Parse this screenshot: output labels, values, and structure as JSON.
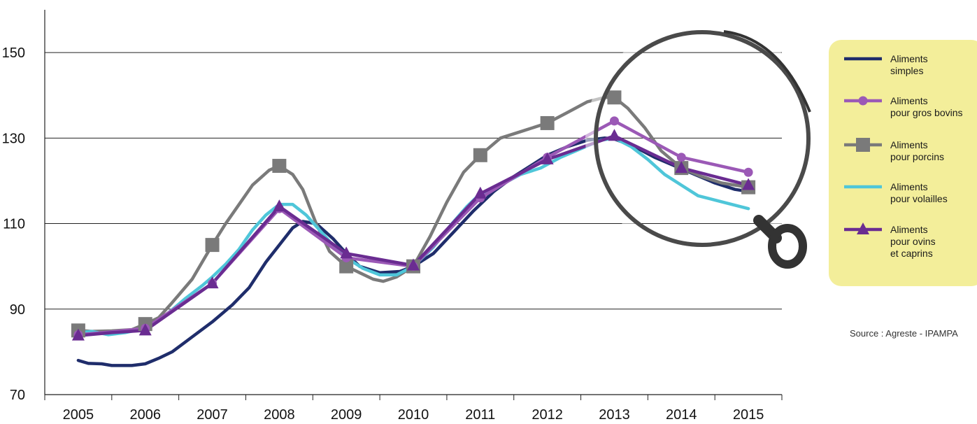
{
  "chart_data": {
    "type": "line",
    "x_ticks": [
      "2005",
      "2006",
      "2007",
      "2008",
      "2009",
      "2010",
      "2011",
      "2012",
      "2013",
      "2014",
      "2015"
    ],
    "y_ticks": [
      "70",
      "90",
      "110",
      "130",
      "150"
    ],
    "ylim": [
      70,
      160
    ],
    "xlim": [
      2004.5,
      2015.5
    ],
    "grid": "horizontal",
    "legend_position": "right",
    "source": "Source : Agreste - IPAMPA",
    "series": [
      {
        "name": "Aliments simples",
        "legend_lines": [
          "Aliments",
          "simples"
        ],
        "color": "#1f2d6b",
        "marker": "none",
        "points": [
          [
            2005.0,
            78.0
          ],
          [
            2005.15,
            77.3
          ],
          [
            2005.35,
            77.2
          ],
          [
            2005.5,
            76.8
          ],
          [
            2005.8,
            76.8
          ],
          [
            2006.0,
            77.2
          ],
          [
            2006.2,
            78.5
          ],
          [
            2006.4,
            80.0
          ],
          [
            2006.7,
            83.5
          ],
          [
            2007.0,
            87.0
          ],
          [
            2007.3,
            91.0
          ],
          [
            2007.55,
            95.0
          ],
          [
            2007.8,
            101.0
          ],
          [
            2008.0,
            105.0
          ],
          [
            2008.2,
            109.0
          ],
          [
            2008.35,
            110.5
          ],
          [
            2008.55,
            110.0
          ],
          [
            2008.8,
            106.5
          ],
          [
            2009.0,
            103.0
          ],
          [
            2009.2,
            100.0
          ],
          [
            2009.5,
            98.5
          ],
          [
            2009.8,
            98.8
          ],
          [
            2010.0,
            100.0
          ],
          [
            2010.3,
            103.0
          ],
          [
            2010.6,
            108.0
          ],
          [
            2010.9,
            113.0
          ],
          [
            2011.2,
            117.5
          ],
          [
            2011.5,
            121.0
          ],
          [
            2011.8,
            124.0
          ],
          [
            2012.0,
            126.0
          ],
          [
            2012.3,
            128.0
          ],
          [
            2012.6,
            129.5
          ],
          [
            2012.85,
            130.0
          ],
          [
            2013.0,
            129.8
          ],
          [
            2013.3,
            128.0
          ],
          [
            2013.6,
            125.5
          ],
          [
            2013.9,
            123.5
          ],
          [
            2014.2,
            121.5
          ],
          [
            2014.5,
            119.5
          ],
          [
            2014.8,
            118.0
          ],
          [
            2015.0,
            117.5
          ]
        ]
      },
      {
        "name": "Aliments pour gros bovins",
        "legend_lines": [
          "Aliments",
          "pour gros bovins"
        ],
        "color": "#9b59b6",
        "marker": "circle",
        "points": [
          [
            2005.0,
            84.0
          ],
          [
            2005.5,
            84.7
          ],
          [
            2006.0,
            85.5
          ],
          [
            2007.0,
            96.0
          ],
          [
            2008.0,
            113.5
          ],
          [
            2009.0,
            102.0
          ],
          [
            2010.0,
            100.0
          ],
          [
            2011.0,
            116.0
          ],
          [
            2012.0,
            125.5
          ],
          [
            2013.0,
            134.0
          ],
          [
            2014.0,
            125.5
          ],
          [
            2015.0,
            122.0
          ]
        ]
      },
      {
        "name": "Aliments pour porcins",
        "legend_lines": [
          "Aliments",
          "pour porcins"
        ],
        "color": "#7a7a7a",
        "marker": "square",
        "points": [
          [
            2005.0,
            85.0
          ],
          [
            2005.2,
            84.8
          ],
          [
            2005.5,
            84.9
          ],
          [
            2005.8,
            85.2
          ],
          [
            2006.0,
            86.5
          ],
          [
            2006.2,
            88.0
          ],
          [
            2006.4,
            91.5
          ],
          [
            2006.7,
            97.0
          ],
          [
            2007.0,
            105.0
          ],
          [
            2007.2,
            110.0
          ],
          [
            2007.4,
            114.5
          ],
          [
            2007.6,
            119.0
          ],
          [
            2007.85,
            122.5
          ],
          [
            2008.0,
            123.5
          ],
          [
            2008.2,
            121.5
          ],
          [
            2008.35,
            118.0
          ],
          [
            2008.55,
            110.0
          ],
          [
            2008.75,
            103.5
          ],
          [
            2009.0,
            100.0
          ],
          [
            2009.2,
            98.5
          ],
          [
            2009.4,
            97.0
          ],
          [
            2009.55,
            96.5
          ],
          [
            2009.75,
            97.5
          ],
          [
            2010.0,
            100.0
          ],
          [
            2010.25,
            107.0
          ],
          [
            2010.5,
            115.0
          ],
          [
            2010.75,
            122.0
          ],
          [
            2011.0,
            126.0
          ],
          [
            2011.3,
            130.0
          ],
          [
            2011.6,
            131.5
          ],
          [
            2012.0,
            133.5
          ],
          [
            2012.3,
            136.0
          ],
          [
            2012.6,
            138.5
          ],
          [
            2012.85,
            139.5
          ],
          [
            2013.0,
            139.5
          ],
          [
            2013.2,
            137.0
          ],
          [
            2013.45,
            132.5
          ],
          [
            2013.7,
            127.0
          ],
          [
            2014.0,
            123.0
          ],
          [
            2014.3,
            121.0
          ],
          [
            2014.6,
            119.5
          ],
          [
            2015.0,
            118.5
          ]
        ]
      },
      {
        "name": "Aliments pour volailles",
        "legend_lines": [
          "Aliments",
          "pour volailles"
        ],
        "color": "#4fc6d9",
        "marker": "none",
        "points": [
          [
            2005.0,
            84.5
          ],
          [
            2005.2,
            84.8
          ],
          [
            2005.45,
            84.0
          ],
          [
            2005.7,
            84.5
          ],
          [
            2006.0,
            85.5
          ],
          [
            2006.3,
            88.5
          ],
          [
            2006.6,
            92.5
          ],
          [
            2006.85,
            95.5
          ],
          [
            2007.0,
            97.5
          ],
          [
            2007.2,
            100.5
          ],
          [
            2007.4,
            104.0
          ],
          [
            2007.6,
            108.5
          ],
          [
            2007.8,
            112.0
          ],
          [
            2008.0,
            114.5
          ],
          [
            2008.2,
            114.5
          ],
          [
            2008.4,
            112.0
          ],
          [
            2008.6,
            108.5
          ],
          [
            2008.8,
            105.0
          ],
          [
            2009.0,
            102.0
          ],
          [
            2009.25,
            99.5
          ],
          [
            2009.5,
            98.0
          ],
          [
            2009.75,
            98.0
          ],
          [
            2010.0,
            100.0
          ],
          [
            2010.3,
            104.5
          ],
          [
            2010.55,
            109.5
          ],
          [
            2010.8,
            114.0
          ],
          [
            2011.0,
            117.0
          ],
          [
            2011.3,
            119.0
          ],
          [
            2011.6,
            121.5
          ],
          [
            2011.9,
            123.0
          ],
          [
            2012.2,
            125.5
          ],
          [
            2012.5,
            127.5
          ],
          [
            2012.8,
            129.5
          ],
          [
            2013.0,
            130.0
          ],
          [
            2013.25,
            128.0
          ],
          [
            2013.5,
            125.0
          ],
          [
            2013.75,
            121.5
          ],
          [
            2014.0,
            119.0
          ],
          [
            2014.25,
            116.5
          ],
          [
            2014.5,
            115.5
          ],
          [
            2014.75,
            114.5
          ],
          [
            2015.0,
            113.5
          ]
        ]
      },
      {
        "name": "Aliments pour ovins et caprins",
        "legend_lines": [
          "Aliments",
          "pour ovins",
          "et caprins"
        ],
        "color": "#6a2c91",
        "marker": "triangle",
        "points": [
          [
            2005.0,
            83.8
          ],
          [
            2005.5,
            84.5
          ],
          [
            2006.0,
            85.0
          ],
          [
            2007.0,
            96.0
          ],
          [
            2008.0,
            114.0
          ],
          [
            2009.0,
            103.0
          ],
          [
            2010.0,
            100.2
          ],
          [
            2011.0,
            117.0
          ],
          [
            2012.0,
            125.0
          ],
          [
            2013.0,
            130.5
          ],
          [
            2014.0,
            123.0
          ],
          [
            2015.0,
            119.0
          ]
        ]
      }
    ]
  }
}
